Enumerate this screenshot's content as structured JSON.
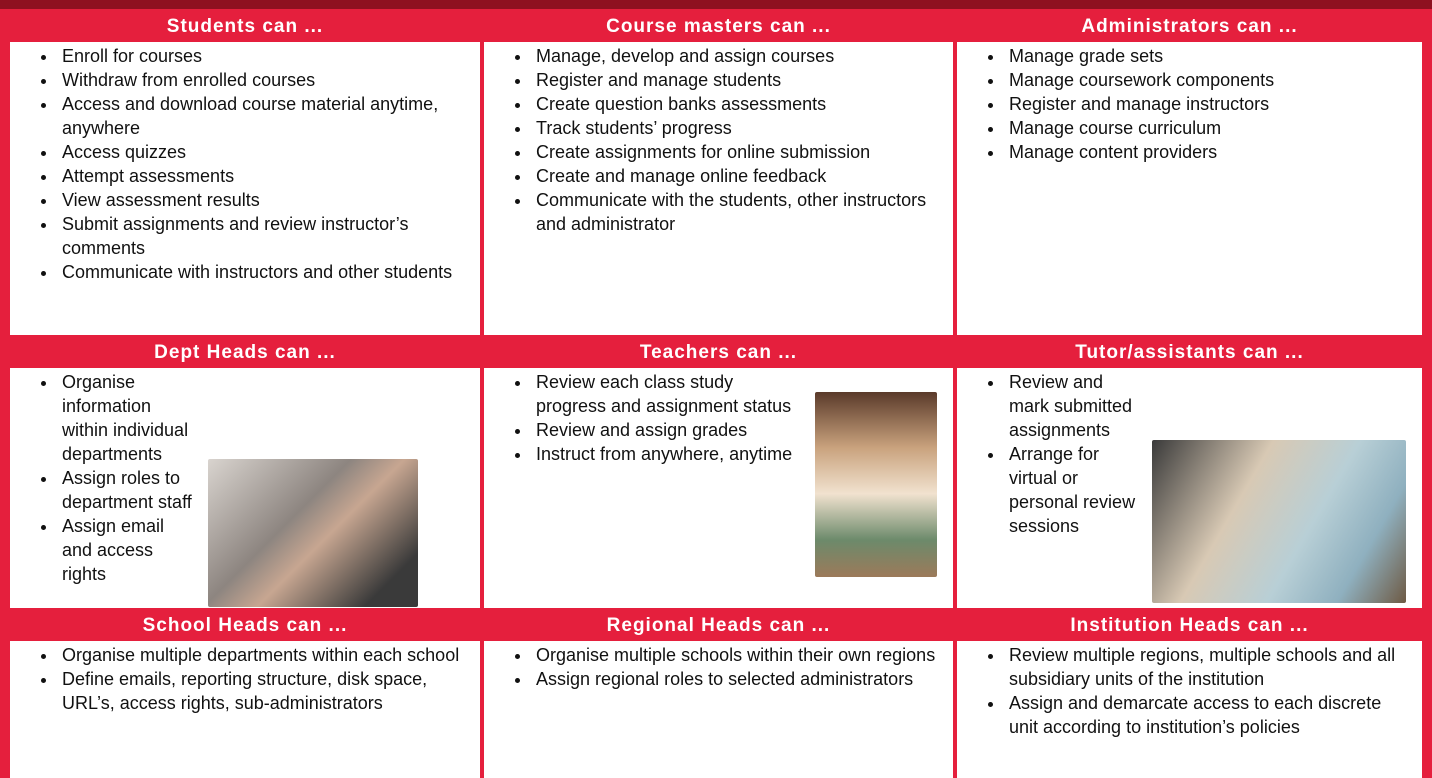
{
  "cells": [
    {
      "title": "Students can ...",
      "items": [
        "Enroll for courses",
        "Withdraw from enrolled courses",
        "Access and download course material anytime, anywhere",
        "Access quizzes",
        "Attempt assessments",
        "View assessment results",
        "Submit assignments and review instructor’s comments",
        "Communicate with instructors and other students"
      ]
    },
    {
      "title": "Course masters can ...",
      "items": [
        "Manage, develop and assign courses",
        "Register and manage students",
        "Create question banks assessments",
        "Track students’ progress",
        "Create assignments for online submission",
        "Create and manage online feedback",
        "Communicate with the students, other instructors and administrator"
      ]
    },
    {
      "title": "Administrators can ...",
      "items": [
        "Manage grade sets",
        "Manage coursework components",
        "Register and manage instructors",
        "Manage course curriculum",
        "Manage content providers"
      ]
    },
    {
      "title": "Dept Heads can ...",
      "items": [
        "Organise information within individual departments",
        "Assign roles to department staff",
        "Assign email and access rights"
      ]
    },
    {
      "title": "Teachers can ...",
      "items": [
        "Review each class study progress and assignment status",
        "Review and assign grades",
        "Instruct from anywhere, anytime"
      ]
    },
    {
      "title": "Tutor/assistants can ...",
      "items": [
        "Review and mark submitted assignments",
        "Arrange for virtual or personal review sessions"
      ]
    },
    {
      "title": "School Heads can ...",
      "items": [
        "Organise multiple departments within each school",
        "Define emails, reporting structure, disk space, URL’s, access rights, sub-administrators"
      ]
    },
    {
      "title": "Regional Heads can ...",
      "items": [
        "Organise multiple schools within their own regions",
        "Assign regional roles to selected administrators"
      ]
    },
    {
      "title": "Institution Heads can ...",
      "items": [
        "Review multiple regions, multiple schools and all subsidiary units of the institution",
        "Assign and demarcate access to each discrete unit according to institution’s policies"
      ]
    }
  ]
}
